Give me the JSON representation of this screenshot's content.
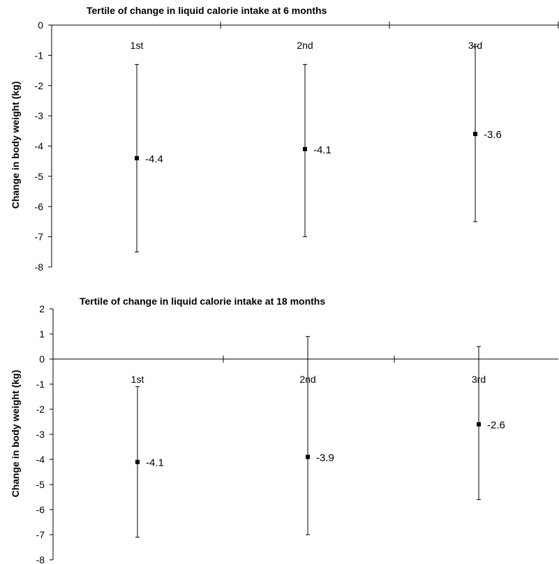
{
  "chart_data": [
    {
      "type": "scatter",
      "title": "Tertile of change in liquid calorie intake at 6 months",
      "ylabel": "Change in body weight (kg)",
      "ylim": [
        -8,
        0
      ],
      "yticks": [
        0,
        -1,
        -2,
        -3,
        -4,
        -5,
        -6,
        -7,
        -8
      ],
      "categories": [
        "1st",
        "2nd",
        "3rd"
      ],
      "values": [
        -4.4,
        -4.1,
        -3.6
      ],
      "value_labels": [
        "-4.4",
        "-4.1",
        "-3.6"
      ],
      "error_low": [
        -7.5,
        -7.0,
        -6.5
      ],
      "error_high": [
        -1.3,
        -1.3,
        -0.7
      ]
    },
    {
      "type": "scatter",
      "title": "Tertile of change in liquid calorie intake at 18 months",
      "ylabel": "Change in body weight (kg)",
      "ylim": [
        -8,
        2
      ],
      "yticks": [
        2,
        1,
        0,
        -1,
        -2,
        -3,
        -4,
        -5,
        -6,
        -7,
        -8
      ],
      "categories": [
        "1st",
        "2nd",
        "3rd"
      ],
      "values": [
        -4.1,
        -3.9,
        -2.6
      ],
      "value_labels": [
        "-4.1",
        "-3.9",
        "-2.6"
      ],
      "error_low": [
        -7.1,
        -7.0,
        -5.6
      ],
      "error_high": [
        -1.1,
        0.9,
        0.5
      ]
    }
  ]
}
